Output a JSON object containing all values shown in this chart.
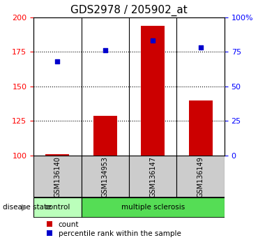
{
  "title": "GDS2978 / 205902_at",
  "samples": [
    "GSM136140",
    "GSM134953",
    "GSM136147",
    "GSM136149"
  ],
  "bar_values": [
    101,
    129,
    194,
    140
  ],
  "scatter_values": [
    168,
    176,
    183,
    178
  ],
  "ylim_left": [
    100,
    200
  ],
  "ylim_right": [
    0,
    100
  ],
  "yticks_left": [
    100,
    125,
    150,
    175,
    200
  ],
  "yticks_right": [
    0,
    25,
    50,
    75,
    100
  ],
  "yticklabels_right": [
    "0",
    "25",
    "50",
    "75",
    "100%"
  ],
  "bar_color": "#cc0000",
  "scatter_color": "#0000cc",
  "bar_width": 0.5,
  "control_color": "#bbffbb",
  "ms_color": "#55dd55",
  "sample_box_color": "#cccccc",
  "legend_items": [
    "count",
    "percentile rank within the sample"
  ],
  "legend_colors": [
    "#cc0000",
    "#0000cc"
  ],
  "title_fontsize": 11,
  "tick_fontsize": 8,
  "label_fontsize": 7.5,
  "legend_fontsize": 7.5
}
